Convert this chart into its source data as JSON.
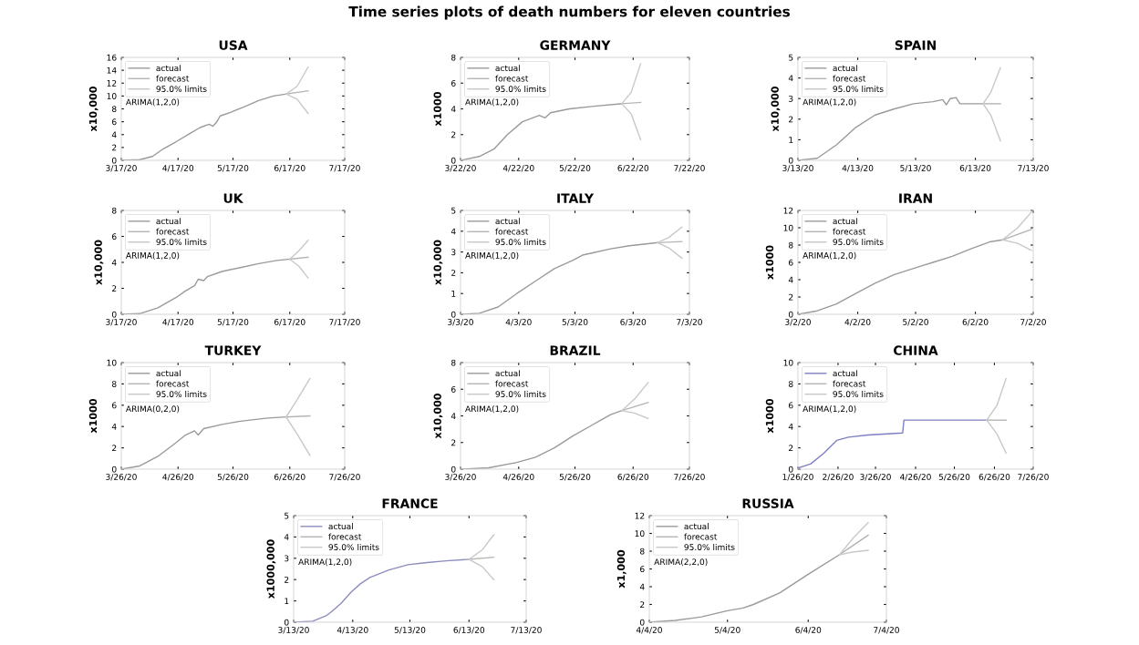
{
  "chart_data": [
    {
      "type": "line",
      "title": "USA",
      "ylabel": "x10,000",
      "legend": "top left",
      "annotations": [
        "Time series plots of death numbers for eleven countries",
        "ARIMA(1,2,0)"
      ],
      "xlim": [
        "2020-03-17",
        "2020-07-17"
      ],
      "xticks": [
        {
          "value": "2020-03-17",
          "label": "3/17/20"
        },
        {
          "value": "2020-04-17",
          "label": "4/17/20"
        },
        {
          "value": "2020-05-17",
          "label": "5/17/20"
        },
        {
          "value": "2020-06-17",
          "label": "6/17/20"
        },
        {
          "value": "2020-07-17",
          "label": "7/17/20"
        }
      ],
      "ylim": [
        0,
        16
      ],
      "yticks": [
        0,
        2,
        4,
        6,
        8,
        10,
        12,
        14,
        16
      ],
      "series": [
        {
          "name": "actual",
          "color": "#9a9a9a",
          "x": [
            "2020-03-17",
            "2020-03-27",
            "2020-04-03",
            "2020-04-09",
            "2020-04-16",
            "2020-04-23",
            "2020-04-29",
            "2020-05-04",
            "2020-05-06",
            "2020-05-08",
            "2020-05-10",
            "2020-05-16",
            "2020-05-23",
            "2020-05-31",
            "2020-06-08",
            "2020-06-15"
          ],
          "values": [
            0,
            0.1,
            0.6,
            1.8,
            2.9,
            4.1,
            5.1,
            5.6,
            5.3,
            5.9,
            6.9,
            7.5,
            8.3,
            9.3,
            10.0,
            10.3
          ]
        },
        {
          "name": "forecast",
          "color": "#b4b4b4",
          "x": [
            "2020-06-15",
            "2020-06-27"
          ],
          "values": [
            10.3,
            10.8
          ]
        },
        {
          "name": "95.0% limits",
          "color": "#c8c8c8",
          "x": [
            "2020-06-15",
            "2020-06-21",
            "2020-06-27"
          ],
          "values": [
            10.3,
            11.5,
            14.5
          ]
        },
        {
          "color": "#c8c8c8",
          "x": [
            "2020-06-15",
            "2020-06-21",
            "2020-06-27"
          ],
          "values": [
            10.3,
            9.5,
            7.3
          ]
        }
      ]
    },
    {
      "type": "line",
      "title": "GERMANY",
      "ylabel": "x1000",
      "legend": "top left",
      "annotations": [
        "ARIMA(1,2,0)"
      ],
      "xlim": [
        "2020-03-22",
        "2020-07-22"
      ],
      "xticks": [
        {
          "value": "2020-03-22",
          "label": "3/22/20"
        },
        {
          "value": "2020-04-22",
          "label": "4/22/20"
        },
        {
          "value": "2020-05-22",
          "label": "5/22/20"
        },
        {
          "value": "2020-06-22",
          "label": "6/22/20"
        },
        {
          "value": "2020-07-22",
          "label": "7/22/20"
        }
      ],
      "ylim": [
        0,
        8
      ],
      "yticks": [
        0,
        2,
        4,
        6,
        8
      ],
      "series": [
        {
          "name": "actual",
          "color": "#9a9a9a",
          "x": [
            "2020-03-22",
            "2020-04-01",
            "2020-04-09",
            "2020-04-16",
            "2020-04-24",
            "2020-05-03",
            "2020-05-06",
            "2020-05-09",
            "2020-05-19",
            "2020-06-01",
            "2020-06-16"
          ],
          "values": [
            0,
            0.3,
            0.9,
            2.0,
            3.0,
            3.5,
            3.3,
            3.7,
            4.0,
            4.2,
            4.4
          ]
        },
        {
          "name": "forecast",
          "color": "#b4b4b4",
          "x": [
            "2020-06-16",
            "2020-06-26"
          ],
          "values": [
            4.4,
            4.5
          ]
        },
        {
          "name": "95.0% limits",
          "color": "#c8c8c8",
          "x": [
            "2020-06-16",
            "2020-06-21",
            "2020-06-26"
          ],
          "values": [
            4.4,
            5.3,
            7.5
          ]
        },
        {
          "color": "#c8c8c8",
          "x": [
            "2020-06-16",
            "2020-06-21",
            "2020-06-26"
          ],
          "values": [
            4.4,
            3.6,
            1.6
          ]
        }
      ]
    },
    {
      "type": "line",
      "title": "SPAIN",
      "ylabel": "x10,000",
      "legend": "top left",
      "annotations": [
        "ARIMA(1,2,0)"
      ],
      "xlim": [
        "2020-03-13",
        "2020-07-13"
      ],
      "xticks": [
        {
          "value": "2020-03-13",
          "label": "3/13/20"
        },
        {
          "value": "2020-04-13",
          "label": "4/13/20"
        },
        {
          "value": "2020-05-13",
          "label": "5/13/20"
        },
        {
          "value": "2020-06-13",
          "label": "6/13/20"
        },
        {
          "value": "2020-07-13",
          "label": "7/13/20"
        }
      ],
      "ylim": [
        0,
        5
      ],
      "yticks": [
        0,
        1,
        2,
        3,
        4,
        5
      ],
      "series": [
        {
          "name": "actual",
          "color": "#9a9a9a",
          "x": [
            "2020-03-13",
            "2020-03-23",
            "2020-04-02",
            "2020-04-12",
            "2020-04-22",
            "2020-05-02",
            "2020-05-12",
            "2020-05-22",
            "2020-05-27",
            "2020-05-29",
            "2020-05-31",
            "2020-06-03",
            "2020-06-05",
            "2020-06-17"
          ],
          "values": [
            0,
            0.1,
            0.75,
            1.6,
            2.2,
            2.5,
            2.75,
            2.85,
            2.95,
            2.7,
            3.0,
            3.05,
            2.75,
            2.75
          ]
        },
        {
          "name": "forecast",
          "color": "#b4b4b4",
          "x": [
            "2020-06-17",
            "2020-06-26"
          ],
          "values": [
            2.75,
            2.75
          ]
        },
        {
          "name": "95.0% limits",
          "color": "#c8c8c8",
          "x": [
            "2020-06-17",
            "2020-06-21",
            "2020-06-26"
          ],
          "values": [
            2.75,
            3.3,
            4.5
          ]
        },
        {
          "color": "#c8c8c8",
          "x": [
            "2020-06-17",
            "2020-06-21",
            "2020-06-26"
          ],
          "values": [
            2.75,
            2.2,
            0.95
          ]
        }
      ]
    },
    {
      "type": "line",
      "title": "UK",
      "ylabel": "x10,000",
      "legend": "top left",
      "annotations": [
        "ARIMA(1,2,0)"
      ],
      "xlim": [
        "2020-03-17",
        "2020-07-17"
      ],
      "xticks": [
        {
          "value": "2020-03-17",
          "label": "3/17/20"
        },
        {
          "value": "2020-04-17",
          "label": "4/17/20"
        },
        {
          "value": "2020-05-17",
          "label": "5/17/20"
        },
        {
          "value": "2020-06-17",
          "label": "6/17/20"
        },
        {
          "value": "2020-07-17",
          "label": "7/17/20"
        }
      ],
      "ylim": [
        0,
        8
      ],
      "yticks": [
        0,
        2,
        4,
        6,
        8
      ],
      "series": [
        {
          "name": "actual",
          "color": "#9a9a9a",
          "x": [
            "2020-03-17",
            "2020-03-27",
            "2020-04-06",
            "2020-04-16",
            "2020-04-21",
            "2020-04-26",
            "2020-04-28",
            "2020-05-01",
            "2020-05-03",
            "2020-05-11",
            "2020-05-21",
            "2020-05-31",
            "2020-06-10",
            "2020-06-17"
          ],
          "values": [
            0,
            0.05,
            0.5,
            1.3,
            1.8,
            2.2,
            2.7,
            2.6,
            2.9,
            3.3,
            3.6,
            3.9,
            4.15,
            4.25
          ]
        },
        {
          "name": "forecast",
          "color": "#b4b4b4",
          "x": [
            "2020-06-17",
            "2020-06-27"
          ],
          "values": [
            4.25,
            4.4
          ]
        },
        {
          "name": "95.0% limits",
          "color": "#c8c8c8",
          "x": [
            "2020-06-17",
            "2020-06-22",
            "2020-06-27"
          ],
          "values": [
            4.25,
            4.9,
            5.7
          ]
        },
        {
          "color": "#c8c8c8",
          "x": [
            "2020-06-17",
            "2020-06-22",
            "2020-06-27"
          ],
          "values": [
            4.25,
            3.7,
            2.8
          ]
        }
      ]
    },
    {
      "type": "line",
      "title": "ITALY",
      "ylabel": "x10,000",
      "legend": "top left",
      "annotations": [
        "ARIMA(1,2,0)"
      ],
      "xlim": [
        "2020-03-03",
        "2020-07-03"
      ],
      "xticks": [
        {
          "value": "2020-03-03",
          "label": "3/3/20"
        },
        {
          "value": "2020-04-03",
          "label": "4/3/20"
        },
        {
          "value": "2020-05-03",
          "label": "5/3/20"
        },
        {
          "value": "2020-06-03",
          "label": "6/3/20"
        },
        {
          "value": "2020-07-03",
          "label": "7/3/20"
        }
      ],
      "ylim": [
        0,
        5
      ],
      "yticks": [
        0,
        1,
        2,
        3,
        4,
        5
      ],
      "series": [
        {
          "name": "actual",
          "color": "#9a9a9a",
          "x": [
            "2020-03-03",
            "2020-03-13",
            "2020-03-23",
            "2020-04-02",
            "2020-04-12",
            "2020-04-22",
            "2020-05-02",
            "2020-05-07",
            "2020-05-12",
            "2020-05-22",
            "2020-06-01",
            "2020-06-11",
            "2020-06-16"
          ],
          "values": [
            0,
            0.05,
            0.35,
            1.0,
            1.6,
            2.2,
            2.6,
            2.85,
            2.95,
            3.15,
            3.3,
            3.4,
            3.45
          ]
        },
        {
          "name": "forecast",
          "color": "#b4b4b4",
          "x": [
            "2020-06-16",
            "2020-06-29"
          ],
          "values": [
            3.45,
            3.5
          ]
        },
        {
          "name": "95.0% limits",
          "color": "#c8c8c8",
          "x": [
            "2020-06-16",
            "2020-06-22",
            "2020-06-29"
          ],
          "values": [
            3.45,
            3.7,
            4.2
          ]
        },
        {
          "color": "#c8c8c8",
          "x": [
            "2020-06-16",
            "2020-06-22",
            "2020-06-29"
          ],
          "values": [
            3.45,
            3.2,
            2.7
          ]
        }
      ]
    },
    {
      "type": "line",
      "title": "IRAN",
      "ylabel": "x1000",
      "legend": "top left",
      "annotations": [
        "ARIMA(1,2,0)"
      ],
      "xlim": [
        "2020-03-02",
        "2020-07-02"
      ],
      "xticks": [
        {
          "value": "2020-03-02",
          "label": "3/2/20"
        },
        {
          "value": "2020-04-02",
          "label": "4/2/20"
        },
        {
          "value": "2020-05-02",
          "label": "5/2/20"
        },
        {
          "value": "2020-06-02",
          "label": "6/2/20"
        },
        {
          "value": "2020-07-02",
          "label": "7/2/20"
        }
      ],
      "ylim": [
        0,
        12
      ],
      "yticks": [
        0,
        2,
        4,
        6,
        8,
        10,
        12
      ],
      "series": [
        {
          "name": "actual",
          "color": "#9a9a9a",
          "x": [
            "2020-03-02",
            "2020-03-12",
            "2020-03-22",
            "2020-04-01",
            "2020-04-11",
            "2020-04-21",
            "2020-05-01",
            "2020-05-11",
            "2020-05-21",
            "2020-05-31",
            "2020-06-10",
            "2020-06-16"
          ],
          "values": [
            0,
            0.4,
            1.2,
            2.4,
            3.6,
            4.6,
            5.3,
            6.0,
            6.7,
            7.6,
            8.4,
            8.6
          ]
        },
        {
          "name": "forecast",
          "color": "#b4b4b4",
          "x": [
            "2020-06-16",
            "2020-07-01"
          ],
          "values": [
            8.6,
            9.8
          ]
        },
        {
          "name": "95.0% limits",
          "color": "#c8c8c8",
          "x": [
            "2020-06-16",
            "2020-06-24",
            "2020-07-01"
          ],
          "values": [
            8.6,
            10.0,
            11.8
          ]
        },
        {
          "color": "#c8c8c8",
          "x": [
            "2020-06-16",
            "2020-06-24",
            "2020-07-01"
          ],
          "values": [
            8.6,
            8.2,
            7.4
          ]
        }
      ]
    },
    {
      "type": "line",
      "title": "TURKEY",
      "ylabel": "x1000",
      "legend": "top left",
      "annotations": [
        "ARIMA(0,2,0)"
      ],
      "xlim": [
        "2020-03-26",
        "2020-07-26"
      ],
      "xticks": [
        {
          "value": "2020-03-26",
          "label": "3/26/20"
        },
        {
          "value": "2020-04-26",
          "label": "4/26/20"
        },
        {
          "value": "2020-05-26",
          "label": "5/26/20"
        },
        {
          "value": "2020-06-26",
          "label": "6/26/20"
        },
        {
          "value": "2020-07-26",
          "label": "7/26/20"
        }
      ],
      "ylim": [
        0,
        10
      ],
      "yticks": [
        0,
        2,
        4,
        6,
        8,
        10
      ],
      "series": [
        {
          "name": "actual",
          "color": "#9a9a9a",
          "x": [
            "2020-03-26",
            "2020-04-05",
            "2020-04-15",
            "2020-04-25",
            "2020-04-30",
            "2020-05-05",
            "2020-05-07",
            "2020-05-10",
            "2020-05-20",
            "2020-05-30",
            "2020-06-14",
            "2020-06-24"
          ],
          "values": [
            0,
            0.3,
            1.2,
            2.5,
            3.2,
            3.6,
            3.2,
            3.8,
            4.2,
            4.5,
            4.8,
            4.9
          ]
        },
        {
          "name": "forecast",
          "color": "#b4b4b4",
          "x": [
            "2020-06-24",
            "2020-07-07"
          ],
          "values": [
            4.9,
            5.0
          ]
        },
        {
          "name": "95.0% limits",
          "color": "#c8c8c8",
          "x": [
            "2020-06-24",
            "2020-06-30",
            "2020-07-07"
          ],
          "values": [
            4.9,
            6.5,
            8.5
          ]
        },
        {
          "color": "#c8c8c8",
          "x": [
            "2020-06-24",
            "2020-06-30",
            "2020-07-07"
          ],
          "values": [
            4.9,
            3.3,
            1.3
          ]
        }
      ]
    },
    {
      "type": "line",
      "title": "BRAZIL",
      "ylabel": "x10,000",
      "legend": "top left",
      "annotations": [
        "ARIMA(1,2,0)"
      ],
      "xlim": [
        "2020-03-26",
        "2020-07-26"
      ],
      "xticks": [
        {
          "value": "2020-03-26",
          "label": "3/26/20"
        },
        {
          "value": "2020-04-26",
          "label": "4/26/20"
        },
        {
          "value": "2020-05-26",
          "label": "5/26/20"
        },
        {
          "value": "2020-06-26",
          "label": "6/26/20"
        },
        {
          "value": "2020-07-26",
          "label": "7/26/20"
        }
      ],
      "ylim": [
        0,
        8
      ],
      "yticks": [
        0,
        2,
        4,
        6,
        8
      ],
      "series": [
        {
          "name": "actual",
          "color": "#9a9a9a",
          "x": [
            "2020-03-26",
            "2020-04-10",
            "2020-04-25",
            "2020-05-05",
            "2020-05-15",
            "2020-05-25",
            "2020-06-04",
            "2020-06-09",
            "2020-06-14",
            "2020-06-20"
          ],
          "values": [
            0,
            0.1,
            0.5,
            0.9,
            1.6,
            2.5,
            3.3,
            3.7,
            4.1,
            4.4
          ]
        },
        {
          "name": "forecast",
          "color": "#b4b4b4",
          "x": [
            "2020-06-20",
            "2020-07-04"
          ],
          "values": [
            4.4,
            5.0
          ]
        },
        {
          "name": "95.0% limits",
          "color": "#c8c8c8",
          "x": [
            "2020-06-20",
            "2020-06-27",
            "2020-07-04"
          ],
          "values": [
            4.4,
            5.3,
            6.5
          ]
        },
        {
          "color": "#c8c8c8",
          "x": [
            "2020-06-20",
            "2020-06-27",
            "2020-07-04"
          ],
          "values": [
            4.4,
            4.2,
            3.8
          ]
        }
      ]
    },
    {
      "type": "line",
      "title": "CHINA",
      "ylabel": "x1000",
      "legend": "top left",
      "annotations": [
        "ARIMA(1,2,0)"
      ],
      "xlim": [
        "2020-01-26",
        "2020-07-26"
      ],
      "xticks": [
        {
          "value": "2020-01-26",
          "label": "1/26/20"
        },
        {
          "value": "2020-02-26",
          "label": "2/26/20"
        },
        {
          "value": "2020-03-26",
          "label": "3/26/20"
        },
        {
          "value": "2020-04-26",
          "label": "4/26/20"
        },
        {
          "value": "2020-05-26",
          "label": "5/26/20"
        },
        {
          "value": "2020-06-26",
          "label": "6/26/20"
        },
        {
          "value": "2020-07-26",
          "label": "7/26/20"
        }
      ],
      "ylim": [
        0,
        10
      ],
      "yticks": [
        0,
        2,
        4,
        6,
        8,
        10
      ],
      "series": [
        {
          "name": "actual",
          "color": "#7f7fc4",
          "x": [
            "2020-01-26",
            "2020-02-05",
            "2020-02-15",
            "2020-02-25",
            "2020-03-05",
            "2020-03-20",
            "2020-04-16",
            "2020-04-17",
            "2020-06-20"
          ],
          "values": [
            0.1,
            0.5,
            1.5,
            2.7,
            3.0,
            3.2,
            3.4,
            4.6,
            4.6
          ]
        },
        {
          "name": "forecast",
          "color": "#b4b4b4",
          "x": [
            "2020-06-20",
            "2020-07-05"
          ],
          "values": [
            4.6,
            4.6
          ]
        },
        {
          "name": "95.0% limits",
          "color": "#c8c8c8",
          "x": [
            "2020-06-20",
            "2020-06-28",
            "2020-07-05"
          ],
          "values": [
            4.6,
            6.0,
            8.5
          ]
        },
        {
          "color": "#c8c8c8",
          "x": [
            "2020-06-20",
            "2020-06-28",
            "2020-07-05"
          ],
          "values": [
            4.6,
            3.3,
            1.5
          ]
        }
      ]
    },
    {
      "type": "line",
      "title": "FRANCE",
      "ylabel": "x1000,000",
      "legend": "top left",
      "annotations": [
        "ARIMA(1,2,0)"
      ],
      "xlim": [
        "2020-03-13",
        "2020-07-13"
      ],
      "xticks": [
        {
          "value": "2020-03-13",
          "label": "3/13/20"
        },
        {
          "value": "2020-04-13",
          "label": "4/13/20"
        },
        {
          "value": "2020-05-13",
          "label": "5/13/20"
        },
        {
          "value": "2020-06-13",
          "label": "6/13/20"
        },
        {
          "value": "2020-07-13",
          "label": "7/13/20"
        }
      ],
      "ylim": [
        0,
        5
      ],
      "yticks": [
        0,
        1,
        2,
        3,
        4,
        5
      ],
      "series": [
        {
          "name": "actual",
          "color": "#8c8cbe",
          "x": [
            "2020-03-13",
            "2020-03-23",
            "2020-03-30",
            "2020-04-02",
            "2020-04-07",
            "2020-04-12",
            "2020-04-17",
            "2020-04-22",
            "2020-05-02",
            "2020-05-12",
            "2020-05-22",
            "2020-06-01",
            "2020-06-13"
          ],
          "values": [
            0,
            0.05,
            0.3,
            0.5,
            0.9,
            1.4,
            1.8,
            2.1,
            2.45,
            2.7,
            2.8,
            2.88,
            2.95
          ]
        },
        {
          "name": "forecast",
          "color": "#b4b4b4",
          "x": [
            "2020-06-13",
            "2020-06-26"
          ],
          "values": [
            2.95,
            3.05
          ]
        },
        {
          "name": "95.0% limits",
          "color": "#c8c8c8",
          "x": [
            "2020-06-13",
            "2020-06-20",
            "2020-06-26"
          ],
          "values": [
            2.95,
            3.4,
            4.1
          ]
        },
        {
          "color": "#c8c8c8",
          "x": [
            "2020-06-13",
            "2020-06-20",
            "2020-06-26"
          ],
          "values": [
            2.95,
            2.6,
            2.0
          ]
        }
      ]
    },
    {
      "type": "line",
      "title": "RUSSIA",
      "ylabel": "x1,000",
      "legend": "top left",
      "annotations": [
        "ARIMA(2,2,0)"
      ],
      "xlim": [
        "2020-04-04",
        "2020-07-04"
      ],
      "xticks": [
        {
          "value": "2020-04-04",
          "label": "4/4/20"
        },
        {
          "value": "2020-05-04",
          "label": "5/4/20"
        },
        {
          "value": "2020-06-04",
          "label": "6/4/20"
        },
        {
          "value": "2020-07-04",
          "label": "7/4/20"
        }
      ],
      "ylim": [
        0,
        12
      ],
      "yticks": [
        0,
        2,
        4,
        6,
        8,
        10,
        12
      ],
      "series": [
        {
          "name": "actual",
          "color": "#9a9a9a",
          "x": [
            "2020-04-04",
            "2020-04-14",
            "2020-04-24",
            "2020-05-04",
            "2020-05-10",
            "2020-05-14",
            "2020-05-24",
            "2020-06-04",
            "2020-06-16"
          ],
          "values": [
            0,
            0.2,
            0.6,
            1.3,
            1.6,
            2.0,
            3.3,
            5.4,
            7.6
          ]
        },
        {
          "name": "forecast",
          "color": "#b4b4b4",
          "x": [
            "2020-06-16",
            "2020-06-21",
            "2020-06-27"
          ],
          "values": [
            7.6,
            8.6,
            9.8
          ]
        },
        {
          "name": "95.0% limits",
          "color": "#c8c8c8",
          "x": [
            "2020-06-16",
            "2020-06-21",
            "2020-06-27"
          ],
          "values": [
            7.6,
            9.4,
            11.2
          ]
        },
        {
          "color": "#c8c8c8",
          "x": [
            "2020-06-16",
            "2020-06-21",
            "2020-06-27"
          ],
          "values": [
            7.6,
            7.9,
            8.1
          ]
        }
      ]
    }
  ]
}
